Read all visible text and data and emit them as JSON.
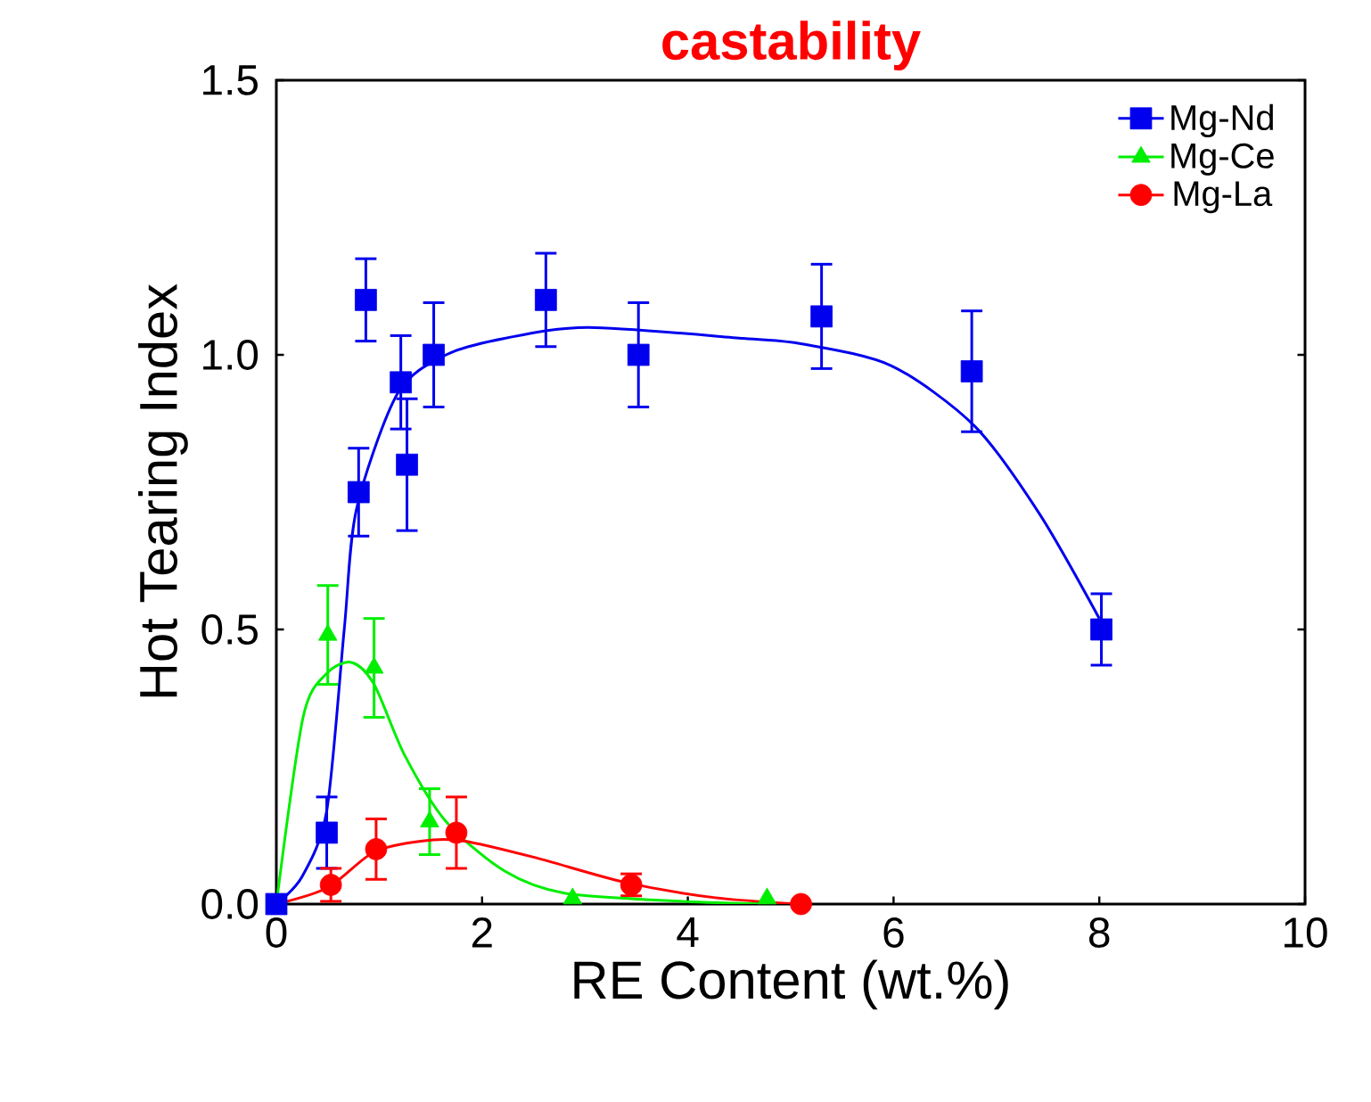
{
  "chart_data": {
    "type": "scatter",
    "title": "castability",
    "xlabel": "RE Content (wt.%)",
    "ylabel": "Hot Tearing Index",
    "xlim": [
      0,
      10
    ],
    "xticks": [
      0,
      2,
      4,
      6,
      8,
      10
    ],
    "ylim": [
      0,
      1.5
    ],
    "yticks": [
      {
        "value": 0,
        "label": "0.0"
      },
      {
        "value": 0.5,
        "label": "0.5"
      },
      {
        "value": 1.0,
        "label": "1.0"
      },
      {
        "value": 1.5,
        "label": "1.5"
      }
    ],
    "legend": "top right",
    "grid": false,
    "series": [
      {
        "name": "Mg-Nd",
        "color": "#0000ee",
        "marker": "square",
        "x": [
          0,
          0.49,
          0.8,
          0.87,
          1.21,
          1.27,
          1.53,
          2.62,
          3.52,
          5.3,
          6.76,
          8.02
        ],
        "values": [
          0,
          0.13,
          0.75,
          1.1,
          0.95,
          0.8,
          1.0,
          1.1,
          1.0,
          1.07,
          0.97,
          0.5
        ],
        "errors": [
          null,
          0.065,
          0.08,
          0.075,
          0.085,
          0.12,
          0.095,
          0.085,
          0.095,
          0.095,
          0.11,
          0.065
        ]
      },
      {
        "name": "Mg-Ce",
        "color": "#00ee00",
        "marker": "triangle",
        "x": [
          0.5,
          0.95,
          1.49,
          2.88,
          4.77
        ],
        "values": [
          0.49,
          0.43,
          0.15,
          0.01,
          0.01
        ],
        "errors": [
          0.09,
          0.09,
          0.06,
          null,
          null
        ]
      },
      {
        "name": "Mg-La",
        "color": "#ff0000",
        "marker": "circle",
        "x": [
          0.53,
          0.97,
          1.75,
          3.45,
          5.1
        ],
        "values": [
          0.035,
          0.1,
          0.13,
          0.035,
          0
        ],
        "errors": [
          0.03,
          0.055,
          0.065,
          0.02,
          null
        ]
      },
      {
        "type": "line",
        "color": "#0000ee",
        "marker": "none",
        "x": [
          0,
          0.25,
          0.49,
          0.66,
          0.78,
          1.18,
          1.65,
          2.22,
          3.03,
          4.54,
          5.11,
          5.98,
          6.79,
          7.42,
          8.0
        ],
        "values": [
          0,
          0.05,
          0.17,
          0.5,
          0.72,
          0.93,
          1.0,
          1.03,
          1.05,
          1.03,
          1.02,
          0.98,
          0.87,
          0.71,
          0.52
        ]
      },
      {
        "type": "line",
        "color": "#00ee00",
        "marker": "none",
        "x": [
          0,
          0.26,
          0.49,
          0.73,
          0.95,
          1.25,
          1.65,
          2.22,
          2.8,
          3.95,
          4.8
        ],
        "values": [
          0,
          0.34,
          0.42,
          0.44,
          0.4,
          0.27,
          0.15,
          0.06,
          0.02,
          0.005,
          0
        ]
      },
      {
        "type": "line",
        "color": "#ff0000",
        "marker": "none",
        "x": [
          0,
          0.5,
          0.95,
          1.42,
          1.82,
          2.51,
          3.38,
          4.25,
          5.1
        ],
        "values": [
          0,
          0.03,
          0.095,
          0.115,
          0.115,
          0.085,
          0.04,
          0.012,
          0
        ]
      }
    ]
  }
}
